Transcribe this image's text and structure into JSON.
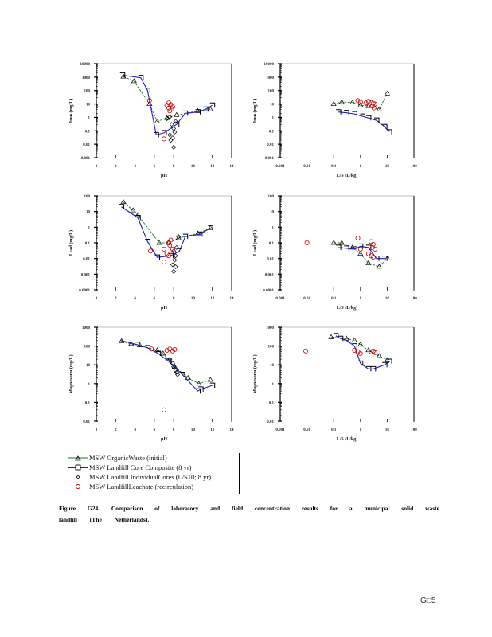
{
  "page": {
    "caption_line1": "Figure G24. Comparison of laboratory and field concentration results for a municipal solid waste",
    "caption_line2": "landfill (The Netherlands).",
    "page_number": "G□5"
  },
  "legend": {
    "entries": [
      {
        "label": "MSW OrganicWaste (initial)",
        "color": "#1a7a1a",
        "marker": "triangle",
        "line": "dashed"
      },
      {
        "label": "MSW Landfill Core Composite (8 yr)",
        "color": "#1a1acc",
        "marker": "square",
        "line": "solid"
      },
      {
        "label": "MSW Landfill IndividualCores (L/S10; 8 yr)",
        "color": "#000000",
        "marker": "diamond",
        "line": "none"
      },
      {
        "label": "MSW LandfillLeachate (recirculation)",
        "color": "#cc0000",
        "marker": "circle",
        "line": "none"
      }
    ]
  },
  "chart_data": [
    {
      "id": "iron-ph",
      "type": "scatter",
      "ylabel": "Iron (mg/L)",
      "xlabel": "pH",
      "xscale": "linear",
      "xlim": [
        0,
        14
      ],
      "xticks": [
        "0",
        "2",
        "4",
        "6",
        "8",
        "10",
        "12",
        "14"
      ],
      "yscale": "log",
      "ylim": [
        0.001,
        10000
      ],
      "yticks": [
        "0.001",
        "0.01",
        "0.1",
        "1",
        "10",
        "100",
        "1000",
        "10000"
      ],
      "series": [
        {
          "name": "MSW OrganicWaste (initial)",
          "x": [
            2.8,
            3.9,
            5.5,
            6.3,
            7.3,
            8.3,
            10.5,
            11.8
          ],
          "y": [
            1100,
            500,
            10,
            0.5,
            0.9,
            1.5,
            3,
            4
          ]
        },
        {
          "name": "MSW Landfill Core Composite (8 yr)",
          "x": [
            2.7,
            4.6,
            5.3,
            6.2,
            7.0,
            8.3,
            9.2,
            10.5,
            11.3,
            12.0
          ],
          "y": [
            1400,
            900,
            100,
            0.05,
            0.07,
            0.3,
            2,
            2.5,
            4,
            8
          ]
        },
        {
          "name": "MSW Landfill IndividualCores (L/S10; 8 yr)",
          "x": [
            7.3,
            7.6,
            7.8,
            8.0,
            8.2,
            7.6,
            7.9,
            8.1,
            7.7,
            8.0
          ],
          "y": [
            0.8,
            1.1,
            0.3,
            0.15,
            0.5,
            0.05,
            0.03,
            0.08,
            0.02,
            0.006
          ]
        },
        {
          "name": "MSW LandfillLeachate (recirculation)",
          "x": [
            5.5,
            7.0,
            7.3,
            7.5,
            7.7,
            7.9,
            7.5,
            7.8,
            7.6
          ],
          "y": [
            18,
            0.025,
            8,
            12,
            9,
            6,
            5,
            4,
            3
          ]
        }
      ]
    },
    {
      "id": "iron-ls",
      "type": "scatter",
      "ylabel": "Iron (mg/L)",
      "xlabel": "L/S (L/kg)",
      "xscale": "log",
      "xlim": [
        0.001,
        100
      ],
      "xticks": [
        "0.001",
        "0.01",
        "0.1",
        "1",
        "10",
        "100"
      ],
      "yscale": "log",
      "ylim": [
        0.001,
        10000
      ],
      "yticks": [
        "0.001",
        "0.01",
        "0.1",
        "1",
        "10",
        "100",
        "1000",
        "10000"
      ],
      "series": [
        {
          "name": "MSW OrganicWaste (initial)",
          "x": [
            0.1,
            0.2,
            0.5,
            1.0,
            2.0,
            5.0,
            10.0
          ],
          "y": [
            10,
            14,
            13,
            8,
            7,
            4,
            60
          ]
        },
        {
          "name": "MSW Landfill Core Composite (8 yr)",
          "x": [
            0.15,
            0.3,
            0.6,
            1.2,
            2.0,
            4.0,
            8.0,
            12.0
          ],
          "y": [
            2.5,
            2.2,
            1.8,
            1.2,
            0.9,
            0.6,
            0.2,
            0.08
          ]
        },
        {
          "name": "MSW Landfill IndividualCores (L/S10; 8 yr)",
          "x": [],
          "y": []
        },
        {
          "name": "MSW LandfillLeachate (recirculation)",
          "x": [
            0.8,
            1.0,
            1.6,
            2.0,
            2.5,
            3.0,
            3.5,
            2.8,
            3.2
          ],
          "y": [
            18,
            14,
            12,
            16,
            13,
            11,
            10,
            7,
            5
          ]
        }
      ]
    },
    {
      "id": "lead-ph",
      "type": "scatter",
      "ylabel": "Lead (mg/L)",
      "xlabel": "pH",
      "xscale": "linear",
      "xlim": [
        0,
        14
      ],
      "xticks": [
        "0",
        "2",
        "4",
        "6",
        "8",
        "10",
        "12",
        "14"
      ],
      "yscale": "log",
      "ylim": [
        0.0001,
        100
      ],
      "yticks": [
        "0.0001",
        "0.001",
        "0.01",
        "0.1",
        "1",
        "10",
        "100"
      ],
      "series": [
        {
          "name": "MSW OrganicWaste (initial)",
          "x": [
            2.8,
            3.8,
            4.3,
            6.5,
            7.5,
            8.5,
            10.5,
            11.8
          ],
          "y": [
            40,
            12,
            6,
            0.1,
            0.1,
            0.2,
            0.4,
            0.9
          ]
        },
        {
          "name": "MSW Landfill Core Composite (8 yr)",
          "x": [
            2.6,
            4.3,
            5.3,
            6.3,
            7.7,
            8.6,
            9.2,
            10.7,
            11.8
          ],
          "y": [
            20,
            4,
            0.12,
            0.012,
            0.015,
            0.03,
            0.25,
            0.35,
            0.9
          ]
        },
        {
          "name": "MSW Landfill IndividualCores (L/S10; 8 yr)",
          "x": [
            8.5,
            8.3,
            8.0,
            8.2,
            8.1,
            7.9,
            8.2,
            8.0
          ],
          "y": [
            0.25,
            0.05,
            0.03,
            0.015,
            0.008,
            0.004,
            0.003,
            0.0015
          ]
        },
        {
          "name": "MSW LandfillLeachate (recirculation)",
          "x": [
            5.6,
            7.0,
            7.5,
            7.7,
            7.6,
            7.3,
            7.9,
            7.5,
            7.0
          ],
          "y": [
            0.03,
            0.04,
            0.1,
            0.15,
            0.07,
            0.02,
            0.04,
            0.015,
            0.006
          ]
        }
      ]
    },
    {
      "id": "lead-ls",
      "type": "scatter",
      "ylabel": "Lead (mg/L)",
      "xlabel": "L/S (L/kg)",
      "xscale": "log",
      "xlim": [
        0.001,
        100
      ],
      "xticks": [
        "0.001",
        "0.01",
        "0.1",
        "1",
        "10",
        "100"
      ],
      "yscale": "log",
      "ylim": [
        0.0001,
        100
      ],
      "yticks": [
        "0.0001",
        "0.001",
        "0.01",
        "0.1",
        "1",
        "10",
        "100"
      ],
      "series": [
        {
          "name": "MSW OrganicWaste (initial)",
          "x": [
            0.1,
            0.2,
            0.5,
            1.0,
            2.0,
            5.0,
            10.0
          ],
          "y": [
            0.1,
            0.1,
            0.05,
            0.02,
            0.005,
            0.003,
            0.01
          ]
        },
        {
          "name": "MSW Landfill Core Composite (8 yr)",
          "x": [
            0.15,
            0.3,
            0.6,
            1.0,
            2.0,
            4.0,
            8.0
          ],
          "y": [
            0.05,
            0.045,
            0.04,
            0.06,
            0.05,
            0.01,
            0.01
          ]
        },
        {
          "name": "MSW Landfill IndividualCores (L/S10; 8 yr)",
          "x": [],
          "y": []
        },
        {
          "name": "MSW LandfillLeachate (recirculation)",
          "x": [
            0.01,
            0.8,
            1.0,
            2.5,
            3.0,
            2.8,
            3.5,
            2.0,
            2.5,
            3.0
          ],
          "y": [
            0.1,
            0.2,
            0.04,
            0.12,
            0.08,
            0.05,
            0.04,
            0.02,
            0.015,
            0.012
          ]
        }
      ]
    },
    {
      "id": "magnesium-ph",
      "type": "scatter",
      "ylabel": "Magnesium (mg/L)",
      "xlabel": "pH",
      "xscale": "linear",
      "xlim": [
        0,
        14
      ],
      "xticks": [
        "0",
        "2",
        "4",
        "6",
        "8",
        "10",
        "12",
        "14"
      ],
      "yscale": "log",
      "ylim": [
        0.01,
        1000
      ],
      "yticks": [
        "0.01",
        "0.1",
        "1",
        "10",
        "100",
        "1000"
      ],
      "series": [
        {
          "name": "MSW OrganicWaste (initial)",
          "x": [
            2.6,
            3.6,
            4.5,
            6.3,
            6.9,
            8.1,
            9.5,
            10.6,
            11.8
          ],
          "y": [
            180,
            130,
            110,
            60,
            40,
            8,
            2,
            1,
            1.6
          ]
        },
        {
          "name": "MSW Landfill Core Composite (8 yr)",
          "x": [
            2.5,
            4.2,
            5.3,
            6.4,
            7.5,
            8.9,
            10.5,
            10.8,
            12.0
          ],
          "y": [
            200,
            120,
            80,
            40,
            15,
            3,
            0.4,
            0.5,
            0.8
          ]
        },
        {
          "name": "MSW Landfill IndividualCores (L/S10; 8 yr)",
          "x": [
            7.6,
            7.9,
            8.0,
            8.2,
            8.3,
            8.4
          ],
          "y": [
            20,
            12,
            8,
            5,
            4,
            3
          ]
        },
        {
          "name": "MSW LandfillLeachate (recirculation)",
          "x": [
            5.7,
            7.0,
            7.3,
            7.6,
            7.9,
            8.1
          ],
          "y": [
            70,
            0.04,
            60,
            70,
            55,
            65
          ]
        }
      ]
    },
    {
      "id": "magnesium-ls",
      "type": "scatter",
      "ylabel": "Magnesium (mg/L)",
      "xlabel": "L/S (L/kg)",
      "xscale": "log",
      "xlim": [
        0.001,
        100
      ],
      "xticks": [
        "0.001",
        "0.01",
        "0.1",
        "1",
        "10",
        "100"
      ],
      "yscale": "log",
      "ylim": [
        0.01,
        1000
      ],
      "yticks": [
        "0.01",
        "0.1",
        "1",
        "10",
        "100",
        "1000"
      ],
      "series": [
        {
          "name": "MSW OrganicWaste (initial)",
          "x": [
            0.08,
            0.3,
            0.6,
            1.0,
            2.0,
            5.0,
            10.0
          ],
          "y": [
            300,
            250,
            200,
            120,
            60,
            30,
            18
          ]
        },
        {
          "name": "MSW Landfill Core Composite (8 yr)",
          "x": [
            0.12,
            0.18,
            0.3,
            0.6,
            1.0,
            2.0,
            3.0,
            8.0,
            12.0
          ],
          "y": [
            350,
            250,
            200,
            100,
            12,
            6,
            6,
            10,
            15
          ]
        },
        {
          "name": "MSW Landfill IndividualCores (L/S10; 8 yr)",
          "x": [],
          "y": []
        },
        {
          "name": "MSW LandfillLeachate (recirculation)",
          "x": [
            0.009,
            0.6,
            0.8,
            1.0,
            2.5,
            3.0,
            3.5
          ],
          "y": [
            55,
            60,
            50,
            40,
            50,
            55,
            45
          ]
        }
      ]
    }
  ]
}
